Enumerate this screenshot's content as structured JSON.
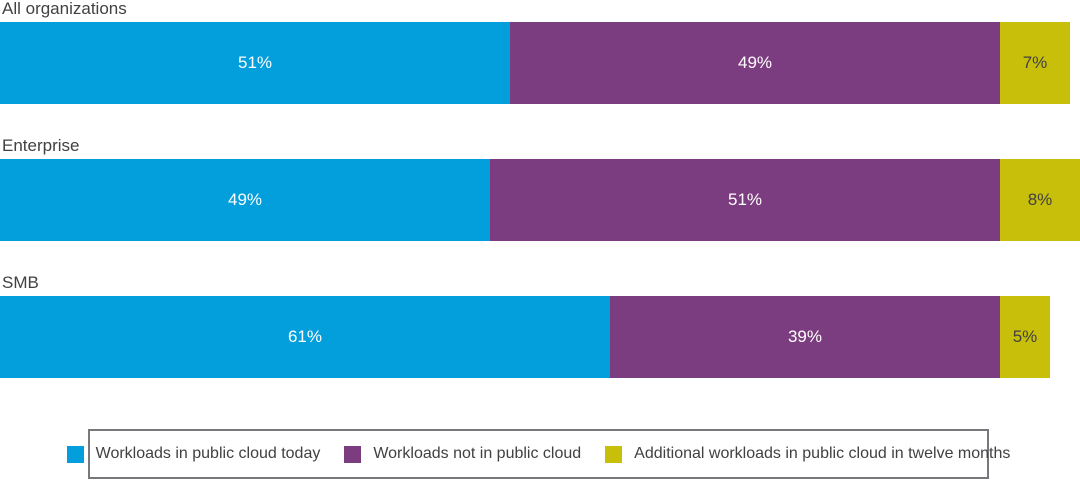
{
  "chart_data": {
    "type": "bar",
    "stacked": true,
    "orientation": "horizontal",
    "categories": [
      "All organizations",
      "Enterprise",
      "SMB"
    ],
    "series": [
      {
        "name": "Workloads in public cloud today",
        "color": "#039EDC",
        "values": [
          51,
          49,
          61
        ]
      },
      {
        "name": "Workloads not in public cloud",
        "color": "#7C3D80",
        "values": [
          49,
          51,
          39
        ]
      },
      {
        "name": "Additional workloads in public cloud in twelve months",
        "color": "#C8BF0B",
        "values": [
          7,
          8,
          5
        ]
      }
    ],
    "value_labels": [
      [
        "51%",
        "49%",
        "7%"
      ],
      [
        "49%",
        "51%",
        "8%"
      ],
      [
        "61%",
        "39%",
        "5%"
      ]
    ],
    "axis_max_percent": 108,
    "grid": false,
    "legend_position": "bottom"
  },
  "legend": {
    "items": [
      {
        "label": "Workloads in public cloud today",
        "color": "#039EDC"
      },
      {
        "label": "Workloads not in public cloud",
        "color": "#7C3D80"
      },
      {
        "label": "Additional workloads in public cloud in twelve months",
        "color": "#C8BF0B"
      }
    ]
  },
  "colors": {
    "label_text": "#414042",
    "bar_value_text_light": "#ffffff",
    "bar_value_text_dark": "#414042",
    "legend_border": "#77787b",
    "background": "#ffffff"
  }
}
